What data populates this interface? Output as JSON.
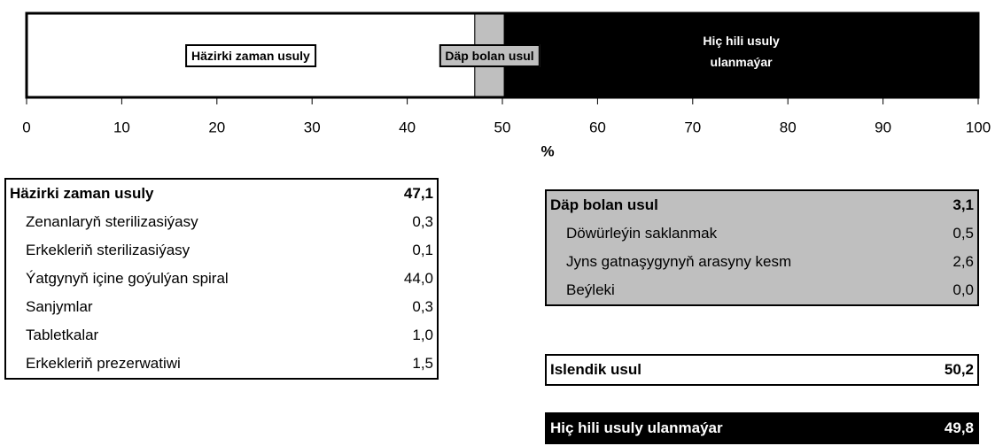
{
  "chart_data": {
    "type": "stacked_bar",
    "series": [
      {
        "name": "Häzirki zaman usuly",
        "color": "#ffffff",
        "label_bg": "#ffffff",
        "label_color": "#000000",
        "values": [
          47.1
        ]
      },
      {
        "name": "Däp bolan usul",
        "color": "#bfbfbf",
        "label_bg": "#bfbfbf",
        "label_color": "#000000",
        "values": [
          3.1
        ]
      },
      {
        "name": "Hiç hili usuly ulanmaýar",
        "color": "#000000",
        "label_bg": "none",
        "label_color": "#ffffff",
        "values": [
          49.8
        ]
      }
    ],
    "xlim": [
      0,
      100
    ],
    "xticks": [
      0,
      10,
      20,
      30,
      40,
      50,
      60,
      70,
      80,
      90,
      100
    ],
    "xlabel": "%"
  },
  "tables": [
    {
      "bg": "#ffffff",
      "color": "#000000",
      "rows": [
        [
          "Häzirki zaman usuly",
          "47,1"
        ],
        [
          "Zenanlaryň sterilizasiýasy",
          "0,3"
        ],
        [
          "Erkekleriň sterilizasiýasy",
          "0,1"
        ],
        [
          "Ýatgynyň içine goýulýan spiral",
          "44,0"
        ],
        [
          "Sanjymlar",
          "0,3"
        ],
        [
          "Tabletkalar",
          "1,0"
        ],
        [
          "Erkekleriň prezerwatiwi",
          "1,5"
        ]
      ]
    },
    {
      "bg": "#bfbfbf",
      "color": "#000000",
      "rows": [
        [
          "Däp bolan usul",
          "3,1"
        ],
        [
          "Döwürleýin saklanmak",
          "0,5"
        ],
        [
          "Jyns gatnaşygynyň arasyny kesm",
          "2,6"
        ],
        [
          "Beýleki",
          "0,0"
        ]
      ]
    },
    {
      "bg": "#ffffff",
      "color": "#000000",
      "rows": [
        [
          "Islendik usul",
          "50,2"
        ]
      ]
    },
    {
      "bg": "#000000",
      "color": "#ffffff",
      "rows": [
        [
          "Hiç hili usuly ulanmaýar",
          "49,8"
        ]
      ]
    }
  ]
}
